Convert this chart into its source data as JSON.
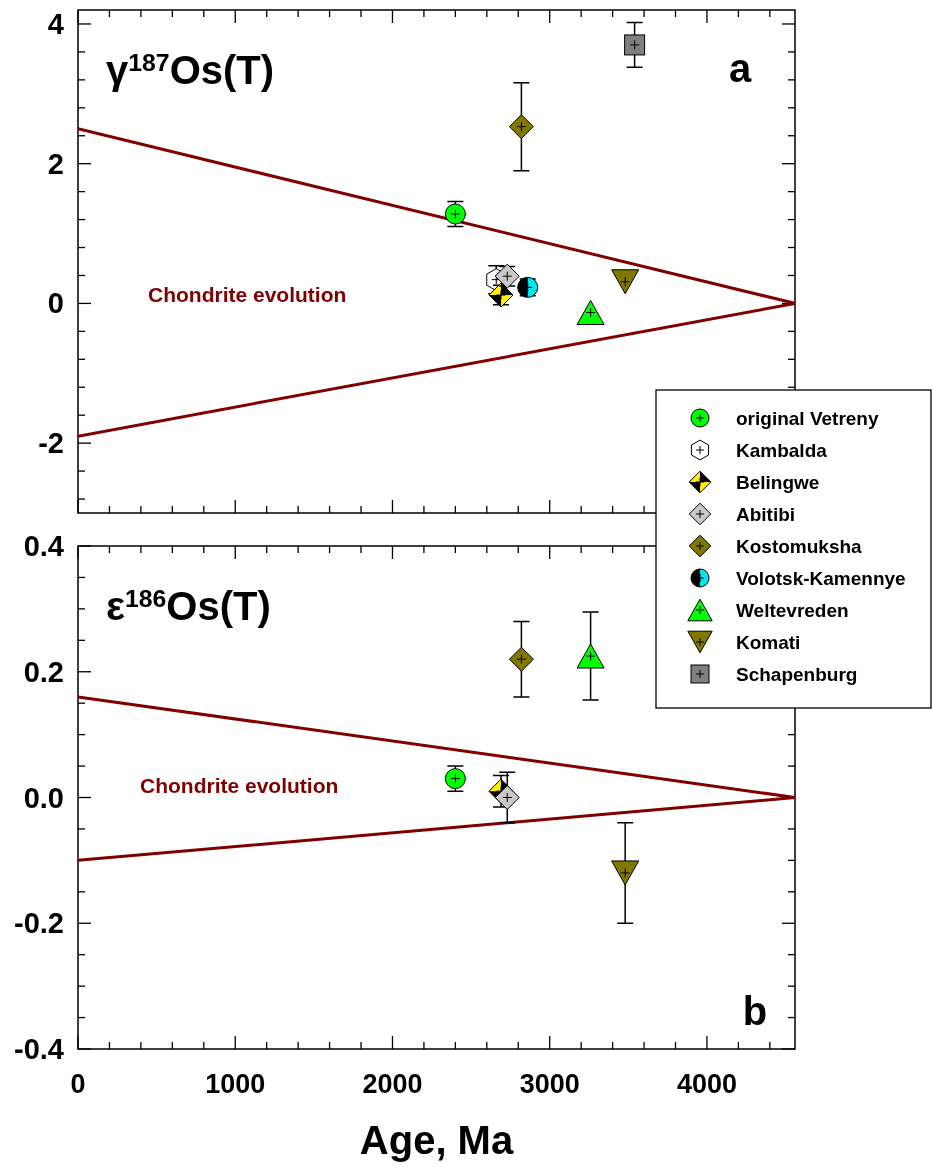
{
  "chart_data": [
    {
      "type": "scatter",
      "title": "γ$^{187}$Os(T)",
      "annotations": [
        "a",
        "Chondrite evolution"
      ],
      "xlim": [
        0,
        4560
      ],
      "ylim": [
        -3,
        4.2
      ],
      "xticks": [
        {
          "value": 0,
          "label": null
        },
        {
          "value": 200,
          "label": null
        },
        {
          "value": 400,
          "label": null
        },
        {
          "value": 600,
          "label": null
        },
        {
          "value": 800,
          "label": null
        },
        {
          "value": 1000,
          "label": null
        },
        {
          "value": 1200,
          "label": null
        },
        {
          "value": 1400,
          "label": null
        },
        {
          "value": 1600,
          "label": null
        },
        {
          "value": 1800,
          "label": null
        },
        {
          "value": 2000,
          "label": null
        },
        {
          "value": 2200,
          "label": null
        },
        {
          "value": 2400,
          "label": null
        },
        {
          "value": 2600,
          "label": null
        },
        {
          "value": 2800,
          "label": null
        },
        {
          "value": 3000,
          "label": null
        },
        {
          "value": 3200,
          "label": null
        },
        {
          "value": 3400,
          "label": null
        },
        {
          "value": 3600,
          "label": null
        },
        {
          "value": 3800,
          "label": null
        },
        {
          "value": 4000,
          "label": null
        },
        {
          "value": 4200,
          "label": null
        },
        {
          "value": 4400,
          "label": null
        }
      ],
      "yticks": [
        {
          "value": -2.8,
          "label": null
        },
        {
          "value": -2.4,
          "label": null
        },
        -2,
        {
          "value": -1.6,
          "label": null
        },
        {
          "value": -1.2,
          "label": null
        },
        {
          "value": -0.8,
          "label": null
        },
        {
          "value": -0.4,
          "label": null
        },
        0,
        {
          "value": 0.4,
          "label": null
        },
        {
          "value": 0.8,
          "label": null
        },
        {
          "value": 1.2,
          "label": null
        },
        {
          "value": 1.6,
          "label": null
        },
        2,
        {
          "value": 2.4,
          "label": null
        },
        {
          "value": 2.8,
          "label": null
        },
        {
          "value": 3.2,
          "label": null
        },
        {
          "value": 3.6,
          "label": null
        },
        4
      ],
      "tick_labels": "y",
      "legend": "right",
      "series": [
        {
          "type": "line",
          "color": "#800000",
          "x": [
            0,
            4560
          ],
          "values": [
            2.5,
            0
          ]
        },
        {
          "type": "line",
          "color": "#800000",
          "x": [
            0,
            4560
          ],
          "values": [
            -1.9,
            0
          ]
        },
        {
          "name": "original Vetreny",
          "color": "#00ff00",
          "marker": "circle",
          "x": [
            2400
          ],
          "values": [
            1.28
          ],
          "errors": [
            0.18
          ]
        },
        {
          "name": "Kambalda",
          "color": "#ffffff",
          "x": [
            2660
          ],
          "values": [
            0.34
          ],
          "errors": [
            0.2
          ]
        },
        {
          "name": "Belingwe",
          "color": "#ffee00",
          "marker": "diamond-half",
          "x": [
            2690
          ],
          "values": [
            0.12
          ],
          "errors": [
            0.14
          ]
        },
        {
          "name": "Abitibi",
          "color": "#c8c8c8",
          "marker": "diamond",
          "x": [
            2730
          ],
          "values": [
            0.39
          ],
          "errors": [
            0.14
          ]
        },
        {
          "name": "Kostomuksha",
          "color": "#807800",
          "marker": "diamond",
          "x": [
            2820
          ],
          "values": [
            2.53
          ],
          "errors": [
            0.63
          ]
        },
        {
          "name": "Volotsk-Kamennye",
          "color": "#00e8f0",
          "marker": "circle-half",
          "x": [
            2860
          ],
          "values": [
            0.23
          ],
          "errors": [
            0.12
          ]
        },
        {
          "name": "Weltevreden",
          "color": "#00ff00",
          "marker": "triangle",
          "x": [
            3260
          ],
          "values": [
            -0.13
          ]
        },
        {
          "name": "Komati",
          "color": "#807800",
          "marker": "triangle-down",
          "x": [
            3480
          ],
          "values": [
            0.31
          ]
        },
        {
          "name": "Schapenburg",
          "color": "#808080",
          "marker": "square",
          "x": [
            3540
          ],
          "values": [
            3.7
          ],
          "errors": [
            0.32
          ]
        }
      ]
    },
    {
      "type": "scatter",
      "title": "ε$^{186}$Os(T)",
      "xlabel": "Age, Ma",
      "annotations": [
        "b",
        "Chondrite evolution"
      ],
      "xlim": [
        0,
        4560
      ],
      "ylim": [
        -0.4,
        0.4
      ],
      "xticks": [
        0,
        {
          "value": 200,
          "label": null
        },
        {
          "value": 400,
          "label": null
        },
        {
          "value": 600,
          "label": null
        },
        {
          "value": 800,
          "label": null
        },
        1000,
        {
          "value": 1200,
          "label": null
        },
        {
          "value": 1400,
          "label": null
        },
        {
          "value": 1600,
          "label": null
        },
        {
          "value": 1800,
          "label": null
        },
        2000,
        {
          "value": 2200,
          "label": null
        },
        {
          "value": 2400,
          "label": null
        },
        {
          "value": 2600,
          "label": null
        },
        {
          "value": 2800,
          "label": null
        },
        3000,
        {
          "value": 3200,
          "label": null
        },
        {
          "value": 3400,
          "label": null
        },
        {
          "value": 3600,
          "label": null
        },
        {
          "value": 3800,
          "label": null
        },
        4000,
        {
          "value": 4200,
          "label": null
        },
        {
          "value": 4400,
          "label": null
        }
      ],
      "yticks": [
        -0.4,
        {
          "value": -0.35,
          "label": null
        },
        {
          "value": -0.3,
          "label": null
        },
        {
          "value": -0.25,
          "label": null
        },
        -0.2,
        {
          "value": -0.15,
          "label": null
        },
        {
          "value": -0.1,
          "label": null
        },
        {
          "value": -0.05,
          "label": null
        },
        {
          "value": 0,
          "label": "0.0"
        },
        {
          "value": 0.05,
          "label": null
        },
        {
          "value": 0.1,
          "label": null
        },
        {
          "value": 0.15,
          "label": null
        },
        0.2,
        {
          "value": 0.25,
          "label": null
        },
        {
          "value": 0.3,
          "label": null
        },
        {
          "value": 0.35,
          "label": null
        },
        0.4
      ],
      "series": [
        {
          "type": "line",
          "color": "#800000",
          "x": [
            0,
            4560
          ],
          "values": [
            0.16,
            0
          ]
        },
        {
          "type": "line",
          "color": "#800000",
          "x": [
            0,
            4560
          ],
          "values": [
            -0.1,
            0
          ]
        },
        {
          "color": "#00ff00",
          "marker": "circle",
          "x": [
            2400
          ],
          "values": [
            0.03
          ],
          "errors": [
            0.02
          ]
        },
        {
          "color": "#ffee00",
          "marker": "diamond-half",
          "x": [
            2690
          ],
          "values": [
            0.01
          ],
          "errors": [
            0.025
          ]
        },
        {
          "color": "#c8c8c8",
          "marker": "diamond",
          "x": [
            2730
          ],
          "values": [
            0
          ],
          "errors": [
            0.04
          ]
        },
        {
          "color": "#807800",
          "marker": "diamond",
          "x": [
            2820
          ],
          "values": [
            0.22
          ],
          "errors": [
            0.06
          ]
        },
        {
          "color": "#00ff00",
          "marker": "triangle",
          "x": [
            3260
          ],
          "values": [
            0.225
          ],
          "errors": [
            0.07
          ]
        },
        {
          "color": "#807800",
          "marker": "triangle-down",
          "x": [
            3480
          ],
          "values": [
            -0.12
          ],
          "errors": [
            0.08
          ]
        }
      ]
    }
  ]
}
